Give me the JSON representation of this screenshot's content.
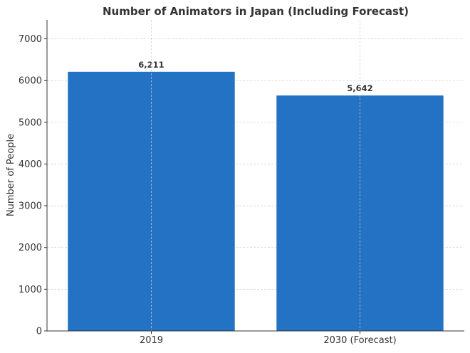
{
  "chart_data": {
    "type": "bar",
    "title": "Number of Animators in Japan (Including Forecast)",
    "xlabel": "",
    "ylabel": "Number of People",
    "categories": [
      "2019",
      "2030 (Forecast)"
    ],
    "values": [
      6211,
      5642
    ],
    "data_labels": [
      "6,211",
      "5,642"
    ],
    "ylim": [
      0,
      7453
    ],
    "yticks": [
      0,
      1000,
      2000,
      3000,
      4000,
      5000,
      6000,
      7000
    ],
    "grid": true,
    "bar_color": "#2372c4"
  }
}
